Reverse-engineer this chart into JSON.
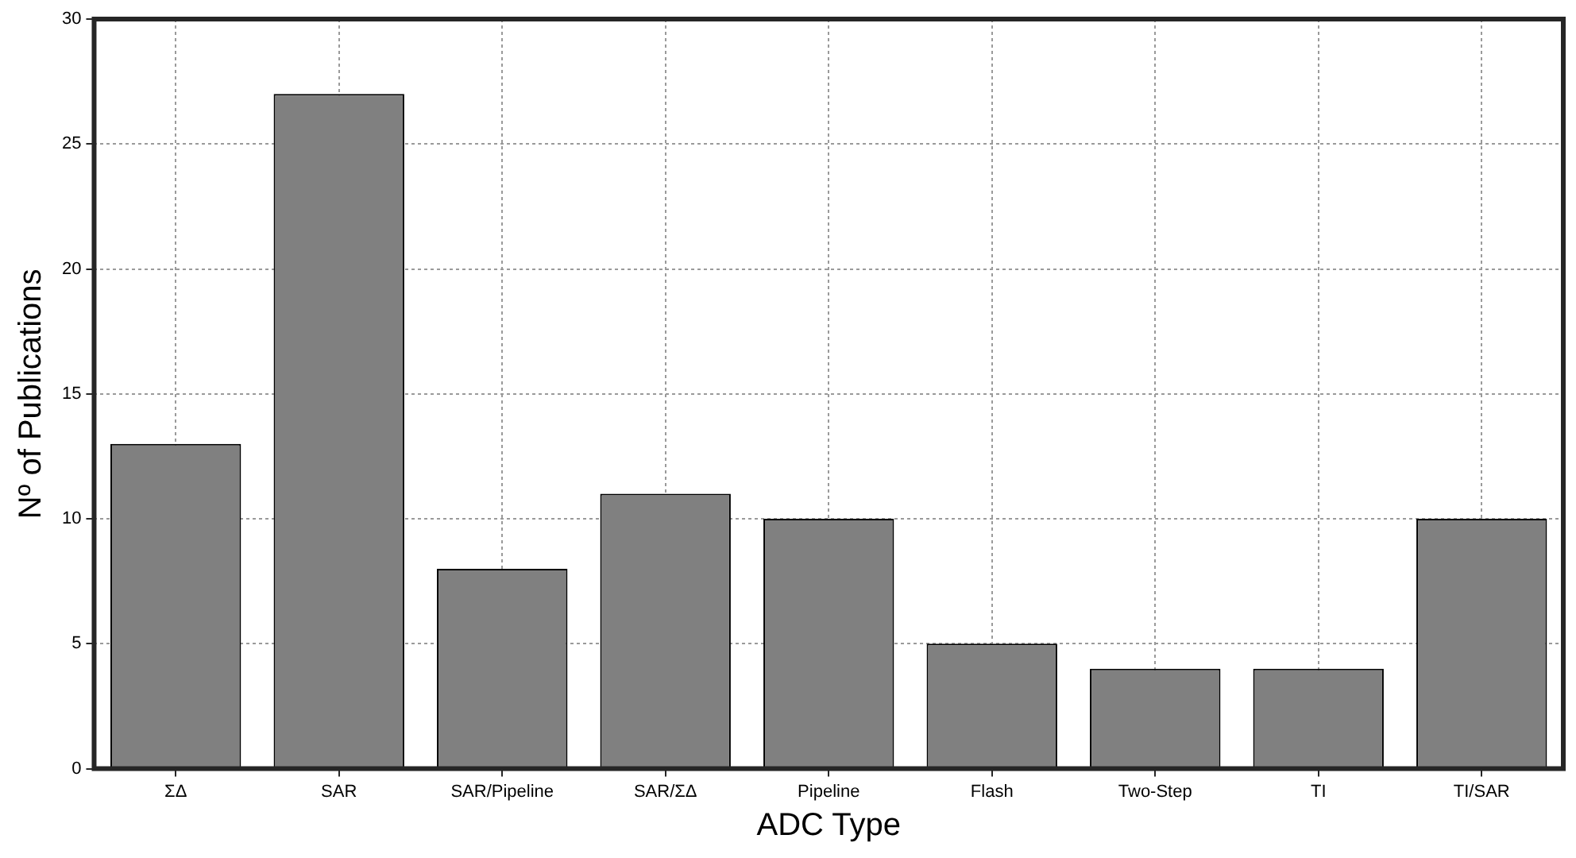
{
  "chart_data": {
    "type": "bar",
    "xlabel": "ADC Type",
    "ylabel": "Nº of Publications",
    "categories": [
      "ΣΔ",
      "SAR",
      "SAR/Pipeline",
      "SAR/ΣΔ",
      "Pipeline",
      "Flash",
      "Two-Step",
      "TI",
      "TI/SAR"
    ],
    "values": [
      13,
      27,
      8,
      11,
      10,
      5,
      4,
      4,
      10
    ],
    "color": "#808080",
    "ylim": [
      0,
      30
    ],
    "yticks": [
      0,
      5,
      10,
      15,
      20,
      25,
      30
    ],
    "grid": true,
    "legend": false
  }
}
